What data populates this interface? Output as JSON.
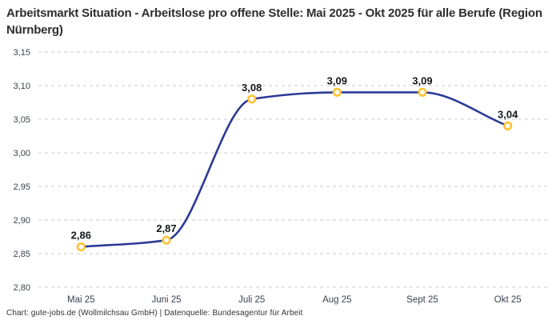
{
  "header": {
    "title": "Arbeitsmarkt Situation - Arbeitslose pro offene Stelle: Mai 2025 - Okt 2025 für alle Berufe (Region Nürnberg)"
  },
  "footer": {
    "credit": "Chart: gute-jobs.de (Wollmilchsau GmbH) | Datenquelle: Bundesagentur für Arbeit"
  },
  "chart_data": {
    "type": "line",
    "title": "Arbeitsmarkt Situation - Arbeitslose pro offene Stelle: Mai 2025 - Okt 2025 für alle Berufe (Region Nürnberg)",
    "categories": [
      "Mai 25",
      "Juni 25",
      "Juli 25",
      "Aug 25",
      "Sept 25",
      "Okt 25"
    ],
    "series": [
      {
        "name": "Arbeitslose pro offene Stelle",
        "values": [
          2.86,
          2.87,
          3.08,
          3.09,
          3.09,
          3.04
        ],
        "value_labels": [
          "2,86",
          "2,87",
          "3,08",
          "3,09",
          "3,09",
          "3,04"
        ]
      }
    ],
    "xlabel": "",
    "ylabel": "",
    "ylim": [
      2.8,
      3.15
    ],
    "y_ticks": [
      {
        "value": 3.15,
        "label": "3,15"
      },
      {
        "value": 3.1,
        "label": "3,10"
      },
      {
        "value": 3.05,
        "label": "3,05"
      },
      {
        "value": 3.0,
        "label": "3,00"
      },
      {
        "value": 2.95,
        "label": "2,95"
      },
      {
        "value": 2.9,
        "label": "2,90"
      },
      {
        "value": 2.85,
        "label": "2,85"
      },
      {
        "value": 2.8,
        "label": "2,80"
      }
    ],
    "grid": true,
    "grid_style": "dashed",
    "legend_position": "none",
    "curve": "monotone",
    "colors": {
      "line": "#2b3a97",
      "marker_stroke": "#fdc330",
      "marker_fill": "#ffffff",
      "grid": "#cccccc",
      "axis_text": "#394150",
      "value_label_text": "#15171b",
      "title_text": "#2e2e2e",
      "background": "#ffffff"
    }
  }
}
